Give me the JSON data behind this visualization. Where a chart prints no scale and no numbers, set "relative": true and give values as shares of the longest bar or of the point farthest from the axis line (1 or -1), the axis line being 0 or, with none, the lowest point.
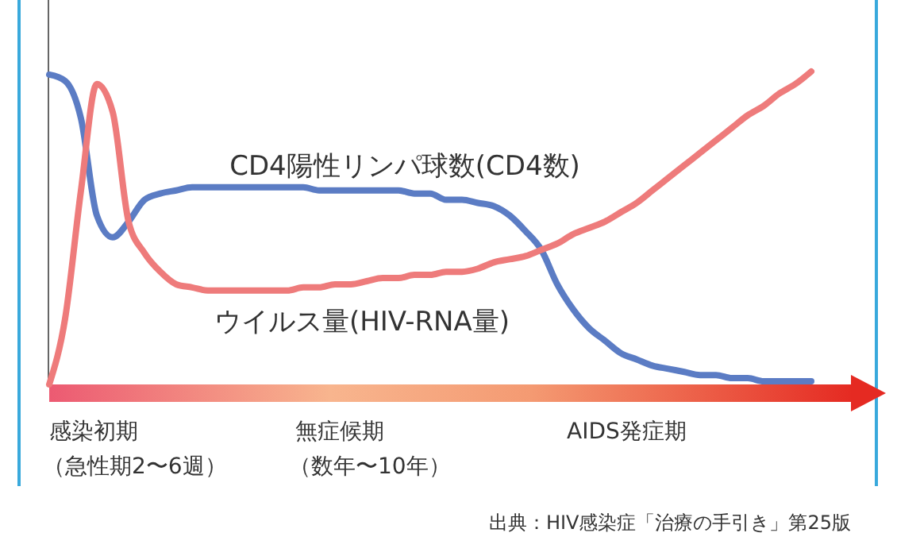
{
  "chart_data": {
    "type": "line",
    "relative": true,
    "categories": [
      null,
      null,
      null,
      null,
      null,
      null,
      null,
      null,
      null,
      null,
      null,
      null,
      null,
      null,
      null,
      null,
      null,
      null,
      null,
      null,
      null,
      null,
      null,
      null,
      null,
      null,
      null,
      null,
      null,
      null,
      null,
      null,
      null,
      null,
      null,
      null,
      null,
      null,
      null,
      null,
      null,
      null,
      null,
      null,
      null,
      null,
      null,
      null,
      null
    ],
    "series": [
      {
        "name": "CD4陽性リンパ球数(CD4数)",
        "color": "#5b7cc4",
        "values": [
          0.99,
          0.97,
          0.85,
          0.54,
          0.47,
          0.52,
          0.59,
          0.61,
          0.62,
          0.63,
          0.63,
          0.63,
          0.63,
          0.63,
          0.63,
          0.63,
          0.63,
          0.62,
          0.62,
          0.62,
          0.62,
          0.62,
          0.62,
          0.61,
          0.61,
          0.59,
          0.59,
          0.58,
          0.57,
          0.54,
          0.49,
          0.43,
          0.32,
          0.24,
          0.18,
          0.14,
          0.1,
          0.08,
          0.06,
          0.05,
          0.04,
          0.03,
          0.03,
          0.02,
          0.02,
          0.01,
          0.01,
          0.01,
          0.01
        ]
      },
      {
        "name": "ウイルス量(HIV-RNA量)",
        "color": "#ee7b7b",
        "values": [
          0,
          0.21,
          0.62,
          0.96,
          0.87,
          0.52,
          0.42,
          0.36,
          0.32,
          0.31,
          0.3,
          0.3,
          0.3,
          0.3,
          0.3,
          0.3,
          0.31,
          0.31,
          0.32,
          0.32,
          0.33,
          0.34,
          0.34,
          0.35,
          0.35,
          0.36,
          0.36,
          0.37,
          0.39,
          0.4,
          0.41,
          0.43,
          0.45,
          0.48,
          0.5,
          0.52,
          0.55,
          0.58,
          0.62,
          0.66,
          0.7,
          0.74,
          0.78,
          0.82,
          0.86,
          0.89,
          0.93,
          0.96,
          1
        ]
      }
    ],
    "annotations": [
      "感染初期",
      "（急性期2〜6週）",
      "無症候期",
      "（数年〜10年）",
      "AIDS発症期",
      "出典：HIV感染症「治療の手引き」第25版"
    ],
    "line_style": "solid",
    "marker": "none"
  }
}
